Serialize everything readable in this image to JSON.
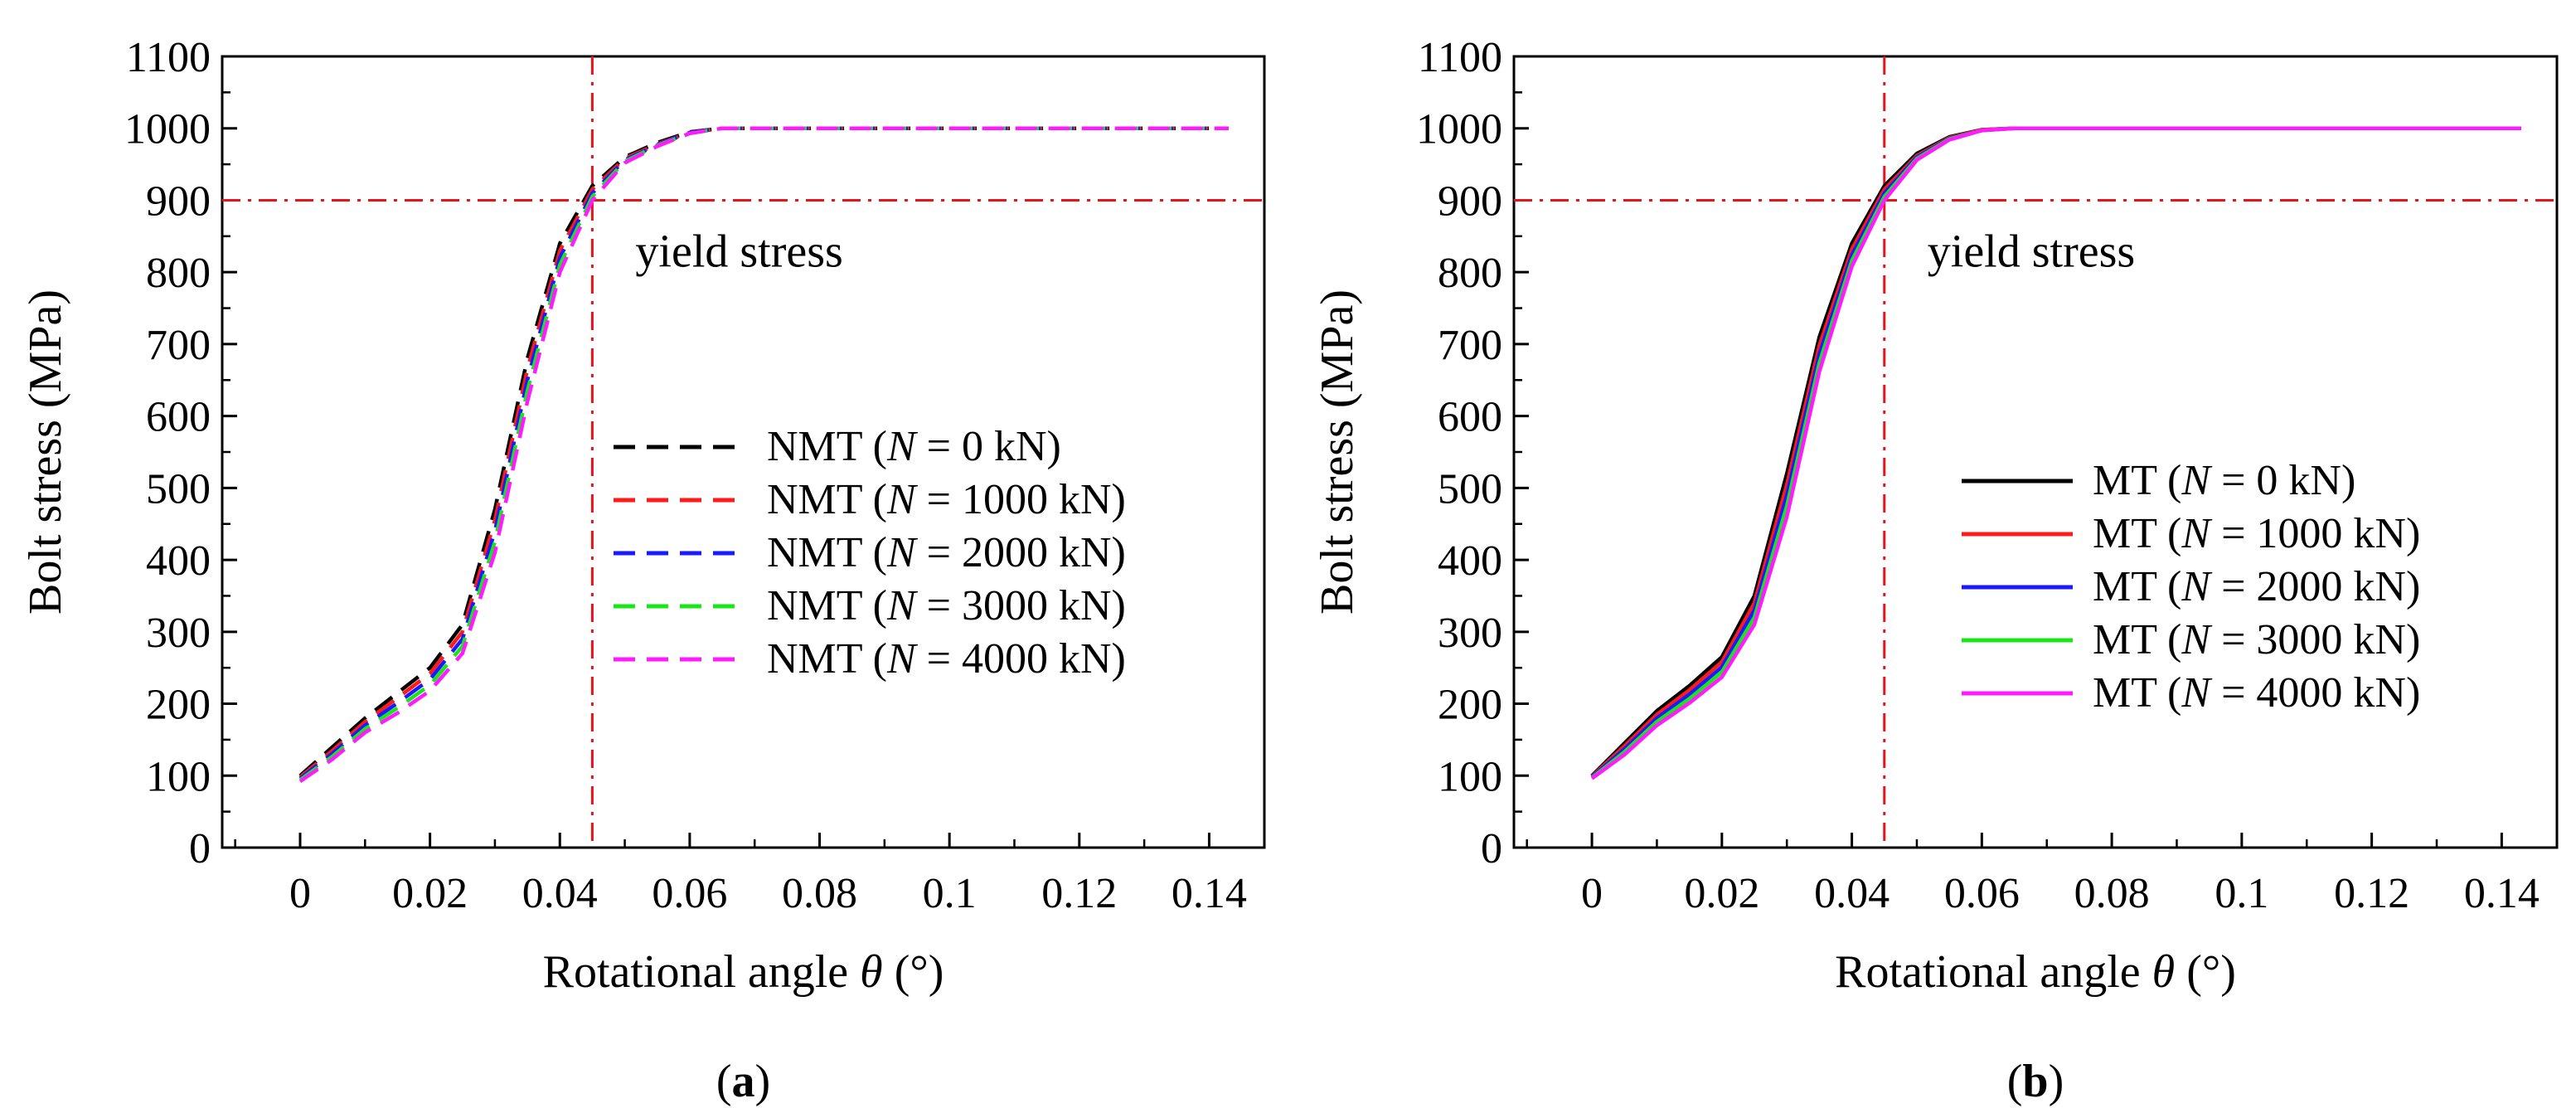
{
  "chart_data": [
    {
      "type": "line",
      "panel_label": "a",
      "xlabel_prefix": "Rotational angle",
      "xlabel_symbol": "θ",
      "xlabel_unit": "(°)",
      "ylabel": "Bolt stress (MPa)",
      "xlim": [
        -0.012,
        0.1485
      ],
      "ylim": [
        0,
        1100
      ],
      "xticks": [
        0,
        0.02,
        0.04,
        0.06,
        0.08,
        0.1,
        0.12,
        0.14
      ],
      "xtick_labels": [
        "0",
        "0.02",
        "0.04",
        "0.06",
        "0.08",
        "0.1",
        "0.12",
        "0.14"
      ],
      "yticks": [
        0,
        100,
        200,
        300,
        400,
        500,
        600,
        700,
        800,
        900,
        1000,
        1100
      ],
      "ytick_labels": [
        "0",
        "100",
        "200",
        "300",
        "400",
        "500",
        "600",
        "700",
        "800",
        "900",
        "1000",
        "1100"
      ],
      "line_style": "dashed",
      "reference_lines": {
        "yield_stress_value": 900,
        "yield_angle": 0.045,
        "color": "#e8141c"
      },
      "annotation": "yield stress",
      "legend_position": "center-right",
      "series": [
        {
          "prefix": "NMT",
          "n": "0 kN",
          "color": "#000000",
          "x": [
            0,
            0.005,
            0.01,
            0.015,
            0.02,
            0.025,
            0.03,
            0.035,
            0.04,
            0.045,
            0.05,
            0.055,
            0.06,
            0.065,
            0.08,
            0.1,
            0.12,
            0.143
          ],
          "y": [
            100,
            140,
            180,
            215,
            250,
            310,
            470,
            680,
            840,
            920,
            960,
            980,
            995,
            1000,
            1000,
            1000,
            1000,
            1000
          ]
        },
        {
          "prefix": "NMT",
          "n": "1000 kN",
          "color": "#ff1a1a",
          "x": [
            0,
            0.005,
            0.01,
            0.015,
            0.02,
            0.025,
            0.03,
            0.035,
            0.04,
            0.045,
            0.05,
            0.055,
            0.06,
            0.065,
            0.08,
            0.1,
            0.12,
            0.143
          ],
          "y": [
            98,
            135,
            175,
            208,
            242,
            300,
            455,
            665,
            830,
            915,
            958,
            978,
            994,
            1000,
            1000,
            1000,
            1000,
            1000
          ]
        },
        {
          "prefix": "NMT",
          "n": "2000 kN",
          "color": "#1a1aff",
          "x": [
            0,
            0.005,
            0.01,
            0.015,
            0.02,
            0.025,
            0.03,
            0.035,
            0.04,
            0.045,
            0.05,
            0.055,
            0.06,
            0.065,
            0.08,
            0.1,
            0.12,
            0.143
          ],
          "y": [
            96,
            131,
            170,
            201,
            234,
            290,
            440,
            650,
            820,
            910,
            956,
            977,
            994,
            1000,
            1000,
            1000,
            1000,
            1000
          ]
        },
        {
          "prefix": "NMT",
          "n": "3000 kN",
          "color": "#19e619",
          "x": [
            0,
            0.005,
            0.01,
            0.015,
            0.02,
            0.025,
            0.03,
            0.035,
            0.04,
            0.045,
            0.05,
            0.055,
            0.06,
            0.065,
            0.08,
            0.1,
            0.12,
            0.143
          ],
          "y": [
            94,
            127,
            165,
            194,
            226,
            280,
            425,
            635,
            810,
            905,
            954,
            976,
            993,
            1000,
            1000,
            1000,
            1000,
            1000
          ]
        },
        {
          "prefix": "NMT",
          "n": "4000 kN",
          "color": "#ff1aff",
          "x": [
            0,
            0.005,
            0.01,
            0.015,
            0.02,
            0.025,
            0.03,
            0.035,
            0.04,
            0.045,
            0.05,
            0.055,
            0.06,
            0.065,
            0.08,
            0.1,
            0.12,
            0.143
          ],
          "y": [
            92,
            123,
            160,
            187,
            218,
            270,
            410,
            620,
            800,
            900,
            952,
            975,
            993,
            1000,
            1000,
            1000,
            1000,
            1000
          ]
        }
      ]
    },
    {
      "type": "line",
      "panel_label": "b",
      "xlabel_prefix": "Rotational angle",
      "xlabel_symbol": "θ",
      "xlabel_unit": "(°)",
      "ylabel": "Bolt stress (MPa)",
      "xlim": [
        -0.012,
        0.1485
      ],
      "ylim": [
        0,
        1100
      ],
      "xticks": [
        0,
        0.02,
        0.04,
        0.06,
        0.08,
        0.1,
        0.12,
        0.14
      ],
      "xtick_labels": [
        "0",
        "0.02",
        "0.04",
        "0.06",
        "0.08",
        "0.1",
        "0.12",
        "0.14"
      ],
      "yticks": [
        0,
        100,
        200,
        300,
        400,
        500,
        600,
        700,
        800,
        900,
        1000,
        1100
      ],
      "ytick_labels": [
        "0",
        "100",
        "200",
        "300",
        "400",
        "500",
        "600",
        "700",
        "800",
        "900",
        "1000",
        "1100"
      ],
      "line_style": "solid",
      "reference_lines": {
        "yield_stress_value": 900,
        "yield_angle": 0.045,
        "color": "#e8141c"
      },
      "annotation": "yield stress",
      "legend_position": "lower-right",
      "series": [
        {
          "prefix": "MT",
          "n": "0 kN",
          "color": "#000000",
          "x": [
            0,
            0.005,
            0.01,
            0.015,
            0.02,
            0.025,
            0.03,
            0.035,
            0.04,
            0.045,
            0.05,
            0.055,
            0.06,
            0.065,
            0.08,
            0.1,
            0.12,
            0.143
          ],
          "y": [
            100,
            145,
            190,
            225,
            265,
            350,
            520,
            710,
            840,
            920,
            965,
            988,
            998,
            1000,
            1000,
            1000,
            1000,
            1000
          ]
        },
        {
          "prefix": "MT",
          "n": "1000 kN",
          "color": "#ff1a1a",
          "x": [
            0,
            0.005,
            0.01,
            0.015,
            0.02,
            0.025,
            0.03,
            0.035,
            0.04,
            0.045,
            0.05,
            0.055,
            0.06,
            0.065,
            0.08,
            0.1,
            0.12,
            0.143
          ],
          "y": [
            99,
            141,
            185,
            219,
            258,
            340,
            505,
            698,
            832,
            915,
            962,
            987,
            998,
            1000,
            1000,
            1000,
            1000,
            1000
          ]
        },
        {
          "prefix": "MT",
          "n": "2000 kN",
          "color": "#1a1aff",
          "x": [
            0,
            0.005,
            0.01,
            0.015,
            0.02,
            0.025,
            0.03,
            0.035,
            0.04,
            0.045,
            0.05,
            0.055,
            0.06,
            0.065,
            0.08,
            0.1,
            0.12,
            0.143
          ],
          "y": [
            98,
            137,
            180,
            213,
            251,
            330,
            490,
            686,
            824,
            910,
            960,
            986,
            997,
            1000,
            1000,
            1000,
            1000,
            1000
          ]
        },
        {
          "prefix": "MT",
          "n": "3000 kN",
          "color": "#19e619",
          "x": [
            0,
            0.005,
            0.01,
            0.015,
            0.02,
            0.025,
            0.03,
            0.035,
            0.04,
            0.045,
            0.05,
            0.055,
            0.06,
            0.065,
            0.08,
            0.1,
            0.12,
            0.143
          ],
          "y": [
            97,
            133,
            175,
            207,
            244,
            320,
            475,
            674,
            816,
            905,
            958,
            985,
            997,
            1000,
            1000,
            1000,
            1000,
            1000
          ]
        },
        {
          "prefix": "MT",
          "n": "4000 kN",
          "color": "#ff1aff",
          "x": [
            0,
            0.005,
            0.01,
            0.015,
            0.02,
            0.025,
            0.03,
            0.035,
            0.04,
            0.045,
            0.05,
            0.055,
            0.06,
            0.065,
            0.08,
            0.1,
            0.12,
            0.143
          ],
          "y": [
            96,
            129,
            170,
            201,
            237,
            310,
            460,
            662,
            808,
            900,
            956,
            984,
            997,
            1000,
            1000,
            1000,
            1000,
            1000
          ]
        }
      ]
    }
  ]
}
